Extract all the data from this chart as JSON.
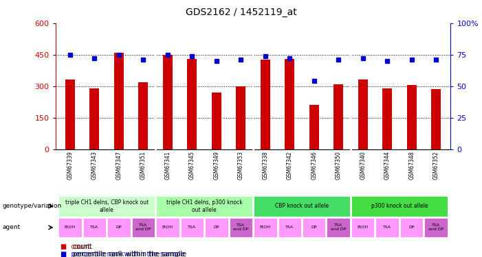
{
  "title": "GDS2162 / 1452119_at",
  "samples": [
    "GSM67339",
    "GSM67343",
    "GSM67347",
    "GSM67351",
    "GSM67341",
    "GSM67345",
    "GSM67349",
    "GSM67353",
    "GSM67338",
    "GSM67342",
    "GSM67346",
    "GSM67350",
    "GSM67340",
    "GSM67344",
    "GSM67348",
    "GSM67352"
  ],
  "counts": [
    330,
    290,
    460,
    320,
    450,
    430,
    270,
    300,
    425,
    430,
    210,
    310,
    330,
    290,
    305,
    285
  ],
  "percentiles": [
    75,
    72,
    75,
    71,
    75,
    74,
    70,
    71,
    74,
    72,
    54,
    71,
    72,
    70,
    71,
    71
  ],
  "ylim_left": [
    0,
    600
  ],
  "ylim_right": [
    0,
    100
  ],
  "yticks_left": [
    0,
    150,
    300,
    450,
    600
  ],
  "yticks_right": [
    0,
    25,
    50,
    75,
    100
  ],
  "ytick_labels_right": [
    "0",
    "25",
    "50",
    "75",
    "100%"
  ],
  "bar_color": "#cc0000",
  "dot_color": "#0000cc",
  "dot_size": 5,
  "bar_width": 0.4,
  "genotype_groups": [
    {
      "label": "triple CH1 delns, CBP knock out\nallele",
      "start": 0,
      "end": 4,
      "color": "#ccffcc"
    },
    {
      "label": "triple CH1 delns, p300 knock\nout allele",
      "start": 4,
      "end": 8,
      "color": "#aaffaa"
    },
    {
      "label": "CBP knock out allele",
      "start": 8,
      "end": 12,
      "color": "#44dd66"
    },
    {
      "label": "p300 knock out allele",
      "start": 12,
      "end": 16,
      "color": "#44dd44"
    }
  ],
  "agent_labels": [
    "EtOH",
    "TSA",
    "DP",
    "TSA\nand DP",
    "EtOH",
    "TSA",
    "DP",
    "TSA\nand DP",
    "EtOH",
    "TSA",
    "DP",
    "TSA\nand DP",
    "EtOH",
    "TSA",
    "DP",
    "TSA\nand DP"
  ],
  "agent_colors": [
    "#ff99ff",
    "#ff99ff",
    "#ff99ff",
    "#cc66cc",
    "#ff99ff",
    "#ff99ff",
    "#ff99ff",
    "#cc66cc",
    "#ff99ff",
    "#ff99ff",
    "#ff99ff",
    "#cc66cc",
    "#ff99ff",
    "#ff99ff",
    "#ff99ff",
    "#cc66cc"
  ],
  "background_color": "#ffffff",
  "sample_label_bg": "#cccccc",
  "tick_color_left": "#cc0000",
  "tick_color_right": "#0000cc",
  "legend_count_color": "#cc0000",
  "legend_pct_color": "#0000cc",
  "hgrid_values": [
    150,
    300,
    450
  ],
  "row_label_genotype": "genotype/variation",
  "row_label_agent": "agent"
}
